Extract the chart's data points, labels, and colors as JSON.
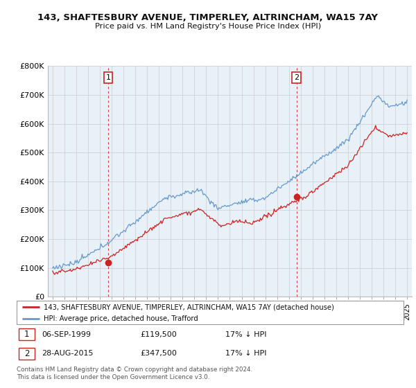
{
  "title": "143, SHAFTESBURY AVENUE, TIMPERLEY, ALTRINCHAM, WA15 7AY",
  "subtitle": "Price paid vs. HM Land Registry's House Price Index (HPI)",
  "legend_line1": "143, SHAFTESBURY AVENUE, TIMPERLEY, ALTRINCHAM, WA15 7AY (detached house)",
  "legend_line2": "HPI: Average price, detached house, Trafford",
  "annotation1_label": "1",
  "annotation1_date": "06-SEP-1999",
  "annotation1_price": "£119,500",
  "annotation1_hpi": "17% ↓ HPI",
  "annotation2_label": "2",
  "annotation2_date": "28-AUG-2015",
  "annotation2_price": "£347,500",
  "annotation2_hpi": "17% ↓ HPI",
  "footer": "Contains HM Land Registry data © Crown copyright and database right 2024.\nThis data is licensed under the Open Government Licence v3.0.",
  "sale1_year": 1999.7,
  "sale1_price": 119500,
  "sale2_year": 2015.65,
  "sale2_price": 347500,
  "hpi_color": "#6699cc",
  "price_color": "#cc2222",
  "vline_color": "#cc2222",
  "plot_bg_color": "#e8f0f8",
  "ylim_min": 0,
  "ylim_max": 800000,
  "yticks": [
    0,
    100000,
    200000,
    300000,
    400000,
    500000,
    600000,
    700000,
    800000
  ],
  "ytick_labels": [
    "£0",
    "£100K",
    "£200K",
    "£300K",
    "£400K",
    "£500K",
    "£600K",
    "£700K",
    "£800K"
  ],
  "background_color": "#ffffff"
}
